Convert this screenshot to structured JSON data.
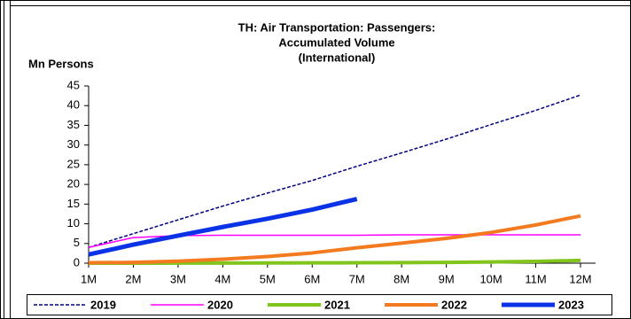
{
  "chart_data": {
    "type": "line",
    "title": [
      "TH: Air Transportation: Passengers:",
      "Accumulated Volume",
      "(International)"
    ],
    "ylabel": "Mn Persons",
    "categories": [
      "1M",
      "2M",
      "3M",
      "4M",
      "5M",
      "6M",
      "7M",
      "8M",
      "9M",
      "10M",
      "11M",
      "12M"
    ],
    "ylim": [
      0,
      45
    ],
    "yticks": [
      0,
      5,
      10,
      15,
      20,
      25,
      30,
      35,
      40,
      45
    ],
    "grid": false,
    "legend": "bottom",
    "series": [
      {
        "name": "2019",
        "color": "#000080",
        "line_width": 1.5,
        "dashed": true,
        "values": [
          4,
          7.5,
          11,
          14.5,
          17.8,
          21,
          24.6,
          28,
          31.5,
          35.2,
          38.8,
          42.7
        ]
      },
      {
        "name": "2020",
        "color": "#ff00ff",
        "line_width": 1.5,
        "dashed": false,
        "values": [
          4,
          6.5,
          7,
          7.1,
          7.1,
          7.1,
          7.1,
          7.2,
          7.2,
          7.2,
          7.2,
          7.2
        ]
      },
      {
        "name": "2021",
        "color": "#80c41c",
        "line_width": 4,
        "dashed": false,
        "values": [
          0,
          0.01,
          0.02,
          0.03,
          0.05,
          0.08,
          0.1,
          0.15,
          0.2,
          0.3,
          0.45,
          0.7
        ]
      },
      {
        "name": "2022",
        "color": "#f47a20",
        "line_width": 4,
        "dashed": false,
        "values": [
          0.1,
          0.2,
          0.5,
          1,
          1.7,
          2.6,
          3.9,
          5.1,
          6.3,
          7.8,
          9.7,
          12
        ]
      },
      {
        "name": "2023",
        "color": "#0a32e6",
        "line_width": 5,
        "dashed": false,
        "values": [
          2.2,
          4.7,
          7,
          9.2,
          11.3,
          13.6,
          16.3,
          null,
          null,
          null,
          null,
          null
        ]
      }
    ]
  }
}
